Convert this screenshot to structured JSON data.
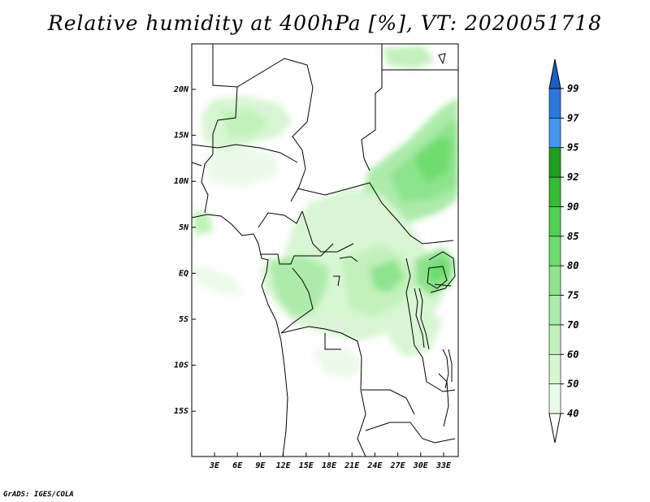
{
  "title": "Relative humidity at 400hPa [%], VT: 2020051718",
  "credit": "GrADS: IGES/COLA",
  "map": {
    "lon_labels": [
      "3E",
      "6E",
      "9E",
      "12E",
      "15E",
      "18E",
      "21E",
      "24E",
      "27E",
      "30E",
      "33E"
    ],
    "lat_labels": [
      "20N",
      "15N",
      "10N",
      "5N",
      "EQ",
      "5S",
      "10S",
      "15S"
    ]
  },
  "colorbar": {
    "levels": [
      "40",
      "50",
      "60",
      "70",
      "75",
      "80",
      "85",
      "90",
      "92",
      "95",
      "97",
      "99"
    ],
    "colors": [
      "#ebfbe9",
      "#d8f6d3",
      "#c3f1bc",
      "#acebaa",
      "#8ee38d",
      "#6ddd6d",
      "#4fd24f",
      "#34bd34",
      "#1c9f1c",
      "#4297f0",
      "#2a78e0",
      "#1a5ec8"
    ]
  }
}
